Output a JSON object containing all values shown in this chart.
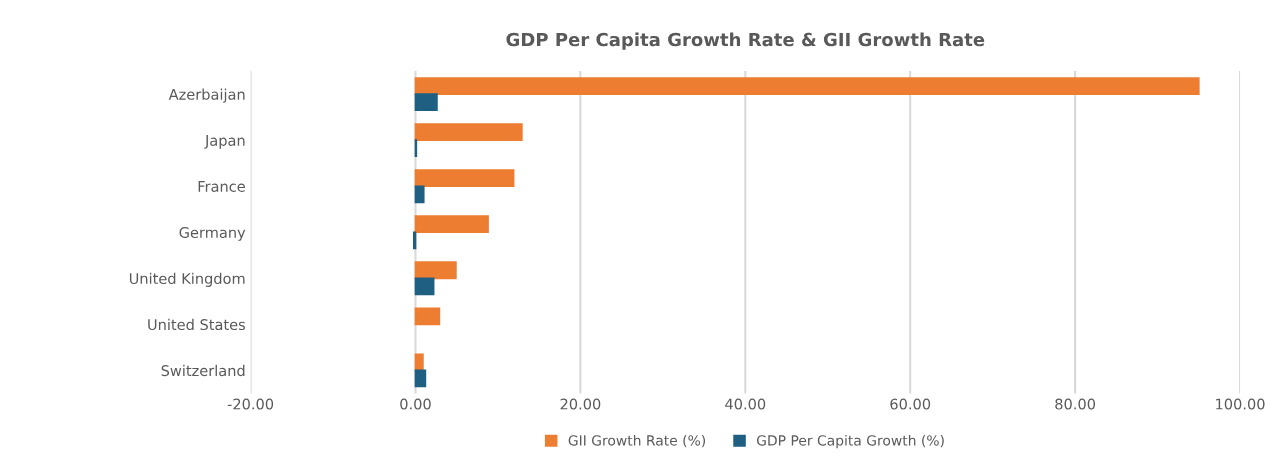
{
  "chart_data": {
    "type": "bar",
    "orientation": "horizontal",
    "title": "GDP Per Capita Growth Rate & GII Growth Rate",
    "categories": [
      "Azerbaijan",
      "Japan",
      "France",
      "Germany",
      "United Kingdom",
      "United States",
      "Switzerland"
    ],
    "series": [
      {
        "name": "GII Growth Rate (%)",
        "color": "#ed7d31",
        "values": [
          95.0,
          12.9,
          11.9,
          8.8,
          4.9,
          2.9,
          0.9
        ]
      },
      {
        "name": "GDP Per Capita Growth (%)",
        "color": "#1f5f82",
        "values": [
          2.6,
          0.1,
          1.0,
          -0.2,
          2.2,
          null,
          1.2
        ]
      }
    ],
    "xlim": [
      -20,
      100
    ],
    "xticks": [
      {
        "value": -20,
        "label": "-20.00"
      },
      {
        "value": 0,
        "label": "0.00"
      },
      {
        "value": 20,
        "label": "20.00"
      },
      {
        "value": 40,
        "label": "40.00"
      },
      {
        "value": 60,
        "label": "60.00"
      },
      {
        "value": 80,
        "label": "80.00"
      },
      {
        "value": 100,
        "label": "100.00"
      }
    ],
    "grid": "x",
    "legend": "bottom"
  }
}
